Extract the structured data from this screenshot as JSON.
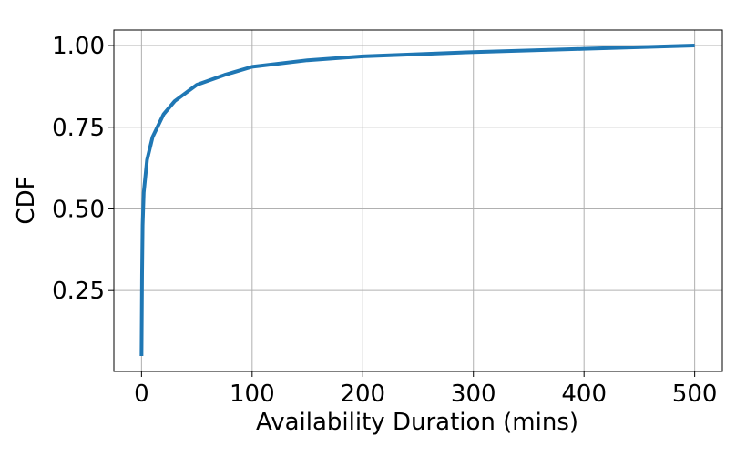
{
  "chart_data": {
    "type": "line",
    "xlabel": "Availability Duration (mins)",
    "ylabel": "CDF",
    "x": [
      0,
      0.5,
      1,
      2,
      5,
      10,
      20,
      30,
      50,
      75,
      100,
      150,
      200,
      300,
      400,
      500
    ],
    "series": [
      {
        "color": "#1f77b4",
        "values": [
          0.05,
          0.3,
          0.45,
          0.55,
          0.65,
          0.72,
          0.79,
          0.83,
          0.88,
          0.91,
          0.935,
          0.955,
          0.967,
          0.98,
          0.99,
          1.0
        ]
      }
    ],
    "xlim": [
      -25,
      525
    ],
    "ylim": [
      0.0025,
      1.0475
    ],
    "xticks": [
      0,
      100,
      200,
      300,
      400,
      500
    ],
    "yticks": [
      0.25,
      {
        "value": 0.5,
        "label": "0.50"
      },
      0.75,
      {
        "value": 1.0,
        "label": "1.00"
      }
    ],
    "grid": true
  }
}
